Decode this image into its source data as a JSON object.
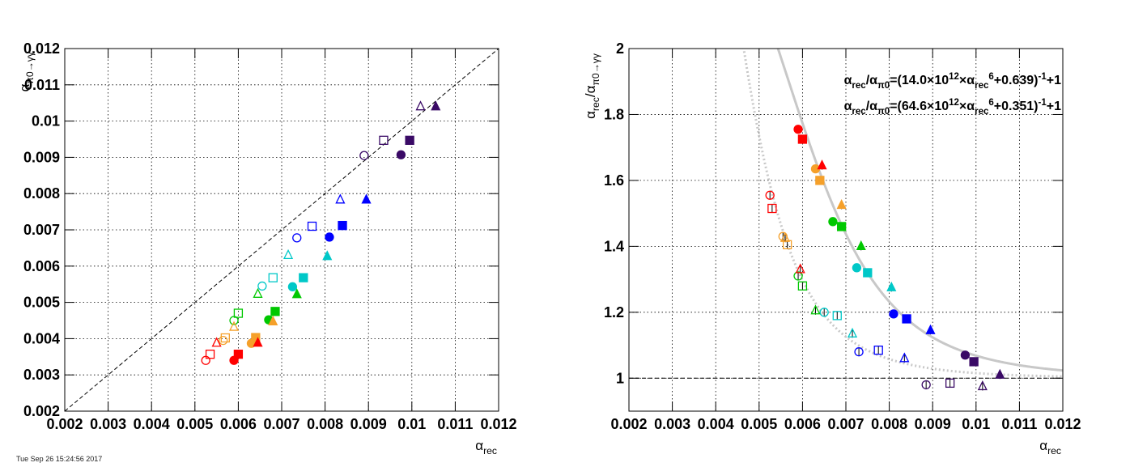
{
  "footer_text": "Tue Sep 26 15:24:56 2017",
  "colors": {
    "red": "#ff0000",
    "orange": "#f5a02a",
    "green": "#00c800",
    "cyan": "#00c8c8",
    "blue": "#0000ff",
    "purple": "#3a0a66",
    "fit_curve": "#c8c8c8"
  },
  "chart_data": [
    {
      "type": "scatter",
      "xlabel": "α_rec",
      "ylabel": "α_π0→γγ",
      "xlim": [
        0.002,
        0.012
      ],
      "ylim": [
        0.002,
        0.012
      ],
      "x_ticks": [
        "0.002",
        "0.003",
        "0.004",
        "0.005",
        "0.006",
        "0.007",
        "0.008",
        "0.009",
        "0.01",
        "0.011",
        "0.012"
      ],
      "y_ticks": [
        "0.002",
        "0.003",
        "0.004",
        "0.005",
        "0.006",
        "0.007",
        "0.008",
        "0.009",
        "0.01",
        "0.011",
        "0.012"
      ],
      "grid": true,
      "reference_line": "y = x (dashed)",
      "series": [
        {
          "marker": "open-circle",
          "points": [
            {
              "x": 0.00525,
              "y": 0.0034,
              "color": "red"
            },
            {
              "x": 0.00565,
              "y": 0.00395,
              "color": "orange"
            },
            {
              "x": 0.0059,
              "y": 0.0045,
              "color": "green"
            },
            {
              "x": 0.00655,
              "y": 0.00545,
              "color": "cyan"
            },
            {
              "x": 0.00735,
              "y": 0.00678,
              "color": "blue"
            },
            {
              "x": 0.0089,
              "y": 0.00905,
              "color": "purple"
            }
          ]
        },
        {
          "marker": "open-square",
          "points": [
            {
              "x": 0.00535,
              "y": 0.00357,
              "color": "red"
            },
            {
              "x": 0.0057,
              "y": 0.00402,
              "color": "orange"
            },
            {
              "x": 0.006,
              "y": 0.0047,
              "color": "green"
            },
            {
              "x": 0.0068,
              "y": 0.00568,
              "color": "cyan"
            },
            {
              "x": 0.0077,
              "y": 0.0071,
              "color": "blue"
            },
            {
              "x": 0.00935,
              "y": 0.00947,
              "color": "purple"
            }
          ]
        },
        {
          "marker": "open-triangle",
          "points": [
            {
              "x": 0.0055,
              "y": 0.00388,
              "color": "red"
            },
            {
              "x": 0.0059,
              "y": 0.00432,
              "color": "orange"
            },
            {
              "x": 0.00645,
              "y": 0.00523,
              "color": "green"
            },
            {
              "x": 0.00715,
              "y": 0.0063,
              "color": "cyan"
            },
            {
              "x": 0.00835,
              "y": 0.00783,
              "color": "blue"
            },
            {
              "x": 0.0102,
              "y": 0.0104,
              "color": "purple"
            }
          ]
        },
        {
          "marker": "filled-circle",
          "points": [
            {
              "x": 0.0059,
              "y": 0.0034,
              "color": "red"
            },
            {
              "x": 0.0063,
              "y": 0.00387,
              "color": "orange"
            },
            {
              "x": 0.0067,
              "y": 0.00452,
              "color": "green"
            },
            {
              "x": 0.00725,
              "y": 0.00543,
              "color": "cyan"
            },
            {
              "x": 0.0081,
              "y": 0.0068,
              "color": "blue"
            },
            {
              "x": 0.00975,
              "y": 0.00907,
              "color": "purple"
            }
          ]
        },
        {
          "marker": "filled-square",
          "points": [
            {
              "x": 0.006,
              "y": 0.00357,
              "color": "red"
            },
            {
              "x": 0.0064,
              "y": 0.00403,
              "color": "orange"
            },
            {
              "x": 0.00685,
              "y": 0.00475,
              "color": "green"
            },
            {
              "x": 0.0075,
              "y": 0.00568,
              "color": "cyan"
            },
            {
              "x": 0.0084,
              "y": 0.00712,
              "color": "blue"
            },
            {
              "x": 0.00995,
              "y": 0.00947,
              "color": "purple"
            }
          ]
        },
        {
          "marker": "filled-triangle",
          "points": [
            {
              "x": 0.00645,
              "y": 0.00388,
              "color": "red"
            },
            {
              "x": 0.0068,
              "y": 0.00447,
              "color": "orange"
            },
            {
              "x": 0.00735,
              "y": 0.00522,
              "color": "green"
            },
            {
              "x": 0.00805,
              "y": 0.00627,
              "color": "cyan"
            },
            {
              "x": 0.00895,
              "y": 0.00783,
              "color": "blue"
            },
            {
              "x": 0.01055,
              "y": 0.0104,
              "color": "purple"
            }
          ]
        }
      ]
    },
    {
      "type": "scatter",
      "xlabel": "α_rec",
      "ylabel": "α_rec/α_π0→γγ",
      "xlim": [
        0.002,
        0.012
      ],
      "ylim": [
        0.9,
        2.0
      ],
      "x_ticks": [
        "0.002",
        "0.003",
        "0.004",
        "0.005",
        "0.006",
        "0.007",
        "0.008",
        "0.009",
        "0.01",
        "0.011",
        "0.012"
      ],
      "y_ticks": [
        "1",
        "1.2",
        "1.4",
        "1.6",
        "1.8",
        "2"
      ],
      "grid": true,
      "reference_line": "y = 1 (dashed)",
      "fit_labels": [
        "α_rec/α_π0=(14.0×10^12×α_rec^6+0.639)^-1+1",
        "α_rec/α_π0=(64.6×10^12×α_rec^6+0.351)^-1+1"
      ],
      "fits": [
        {
          "style": "solid",
          "A": 14000000000000.0,
          "B": 0.639
        },
        {
          "style": "dotted",
          "A": 64600000000000.0,
          "B": 0.351
        }
      ],
      "series": [
        {
          "marker": "open-circle",
          "points": [
            {
              "x": 0.00525,
              "y": 1.555,
              "color": "red"
            },
            {
              "x": 0.00555,
              "y": 1.43,
              "color": "orange"
            },
            {
              "x": 0.0059,
              "y": 1.31,
              "color": "green"
            },
            {
              "x": 0.0065,
              "y": 1.2,
              "color": "cyan"
            },
            {
              "x": 0.0073,
              "y": 1.08,
              "color": "blue"
            },
            {
              "x": 0.00885,
              "y": 0.98,
              "color": "purple"
            }
          ]
        },
        {
          "marker": "open-square",
          "points": [
            {
              "x": 0.0053,
              "y": 1.515,
              "color": "red"
            },
            {
              "x": 0.00565,
              "y": 1.405,
              "color": "orange"
            },
            {
              "x": 0.006,
              "y": 1.28,
              "color": "green"
            },
            {
              "x": 0.0068,
              "y": 1.19,
              "color": "cyan"
            },
            {
              "x": 0.00775,
              "y": 1.085,
              "color": "blue"
            },
            {
              "x": 0.0094,
              "y": 0.985,
              "color": "purple"
            }
          ]
        },
        {
          "marker": "open-triangle",
          "points": [
            {
              "x": 0.00595,
              "y": 1.33,
              "color": "red"
            },
            {
              "x": 0.0056,
              "y": 1.425,
              "color": "orange"
            },
            {
              "x": 0.0063,
              "y": 1.205,
              "color": "green"
            },
            {
              "x": 0.00715,
              "y": 1.135,
              "color": "cyan"
            },
            {
              "x": 0.00835,
              "y": 1.06,
              "color": "blue"
            },
            {
              "x": 0.01015,
              "y": 0.975,
              "color": "purple"
            }
          ]
        },
        {
          "marker": "filled-circle",
          "points": [
            {
              "x": 0.0059,
              "y": 1.755,
              "color": "red"
            },
            {
              "x": 0.0063,
              "y": 1.635,
              "color": "orange"
            },
            {
              "x": 0.0067,
              "y": 1.475,
              "color": "green"
            },
            {
              "x": 0.00725,
              "y": 1.335,
              "color": "cyan"
            },
            {
              "x": 0.0081,
              "y": 1.195,
              "color": "blue"
            },
            {
              "x": 0.00975,
              "y": 1.07,
              "color": "purple"
            }
          ]
        },
        {
          "marker": "filled-square",
          "points": [
            {
              "x": 0.006,
              "y": 1.725,
              "color": "red"
            },
            {
              "x": 0.0064,
              "y": 1.6,
              "color": "orange"
            },
            {
              "x": 0.0069,
              "y": 1.46,
              "color": "green"
            },
            {
              "x": 0.0075,
              "y": 1.32,
              "color": "cyan"
            },
            {
              "x": 0.0084,
              "y": 1.18,
              "color": "blue"
            },
            {
              "x": 0.00995,
              "y": 1.05,
              "color": "purple"
            }
          ]
        },
        {
          "marker": "filled-triangle",
          "points": [
            {
              "x": 0.00645,
              "y": 1.645,
              "color": "red"
            },
            {
              "x": 0.0069,
              "y": 1.525,
              "color": "orange"
            },
            {
              "x": 0.00735,
              "y": 1.4,
              "color": "green"
            },
            {
              "x": 0.00805,
              "y": 1.275,
              "color": "cyan"
            },
            {
              "x": 0.00895,
              "y": 1.145,
              "color": "blue"
            },
            {
              "x": 0.01055,
              "y": 1.01,
              "color": "purple"
            }
          ]
        }
      ]
    }
  ]
}
